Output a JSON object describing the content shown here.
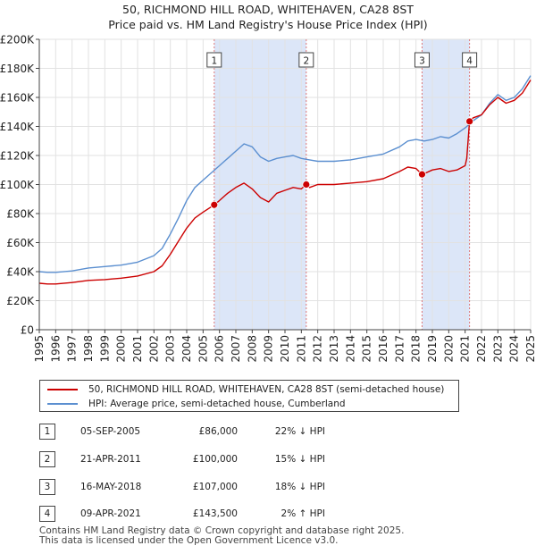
{
  "chart_data": {
    "type": "line",
    "title": "50, RICHMOND HILL ROAD, WHITEHAVEN, CA28 8ST",
    "subtitle": "Price paid vs. HM Land Registry's House Price Index (HPI)",
    "xlim": [
      1995,
      2025
    ],
    "ylim": [
      0,
      200000
    ],
    "x_ticks": [
      "1995",
      "1996",
      "1997",
      "1998",
      "1999",
      "2000",
      "2001",
      "2002",
      "2003",
      "2004",
      "2005",
      "2006",
      "2007",
      "2008",
      "2009",
      "2010",
      "2011",
      "2012",
      "2013",
      "2014",
      "2015",
      "2016",
      "2017",
      "2018",
      "2019",
      "2020",
      "2021",
      "2022",
      "2023",
      "2024",
      "2025"
    ],
    "y_ticks": [
      {
        "value": 0,
        "label": "£0"
      },
      {
        "value": 20000,
        "label": "£20K"
      },
      {
        "value": 40000,
        "label": "£40K"
      },
      {
        "value": 60000,
        "label": "£60K"
      },
      {
        "value": 80000,
        "label": "£80K"
      },
      {
        "value": 100000,
        "label": "£100K"
      },
      {
        "value": 120000,
        "label": "£120K"
      },
      {
        "value": 140000,
        "label": "£140K"
      },
      {
        "value": 160000,
        "label": "£160K"
      },
      {
        "value": 180000,
        "label": "£180K"
      },
      {
        "value": 200000,
        "label": "£200K"
      }
    ],
    "grid": true,
    "colors": {
      "property": "#cc0000",
      "hpi": "#5b8fd0",
      "band": "#dce6f8",
      "vline": "#dd7777"
    },
    "series": [
      {
        "name": "50, RICHMOND HILL ROAD, WHITEHAVEN, CA28 8ST (semi-detached house)",
        "x": [
          1995,
          1995.5,
          1996,
          1997,
          1998,
          1999,
          2000,
          2001,
          2002,
          2002.5,
          2003,
          2003.5,
          2004,
          2004.5,
          2005,
          2005.68,
          2006,
          2006.5,
          2007,
          2007.5,
          2008,
          2008.5,
          2009,
          2009.5,
          2010,
          2010.5,
          2011,
          2011.3,
          2011.5,
          2012,
          2013,
          2014,
          2015,
          2016,
          2017,
          2017.5,
          2018,
          2018.37,
          2018.6,
          2019,
          2019.5,
          2020,
          2020.5,
          2021,
          2021.1,
          2021.27,
          2021.5,
          2022,
          2022.5,
          2023,
          2023.5,
          2024,
          2024.5,
          2025
        ],
        "values": [
          32000,
          31500,
          31500,
          32500,
          34000,
          34500,
          35500,
          37000,
          40000,
          44000,
          52000,
          61000,
          70000,
          77000,
          81000,
          86000,
          89000,
          94000,
          98000,
          101000,
          97000,
          91000,
          88000,
          94000,
          96000,
          98000,
          97000,
          100000,
          98000,
          100000,
          100000,
          101000,
          102000,
          104000,
          109000,
          112000,
          111000,
          107000,
          108000,
          110000,
          111000,
          109000,
          110000,
          113000,
          118000,
          143500,
          146000,
          148000,
          155000,
          160000,
          156000,
          158000,
          163000,
          172000
        ]
      },
      {
        "name": "HPI: Average price, semi-detached house, Cumberland",
        "x": [
          1995,
          1995.5,
          1996,
          1997,
          1998,
          1999,
          2000,
          2001,
          2002,
          2002.5,
          2003,
          2003.5,
          2004,
          2004.5,
          2005,
          2005.5,
          2006,
          2006.5,
          2007,
          2007.5,
          2008,
          2008.5,
          2009,
          2009.5,
          2010,
          2010.5,
          2011,
          2011.5,
          2012,
          2013,
          2014,
          2015,
          2016,
          2017,
          2017.5,
          2018,
          2018.5,
          2019,
          2019.5,
          2020,
          2020.5,
          2021,
          2021.5,
          2022,
          2022.5,
          2023,
          2023.5,
          2024,
          2024.5,
          2025
        ],
        "values": [
          40000,
          39500,
          39500,
          40500,
          42500,
          43500,
          44500,
          46500,
          51000,
          56000,
          66000,
          77000,
          89000,
          98000,
          103000,
          108000,
          113000,
          118000,
          123000,
          128000,
          126000,
          119000,
          116000,
          118000,
          119000,
          120000,
          118000,
          117000,
          116000,
          116000,
          117000,
          119000,
          121000,
          126000,
          130000,
          131000,
          130000,
          131000,
          133000,
          132000,
          135000,
          139000,
          144000,
          148000,
          156000,
          162000,
          158000,
          160000,
          166000,
          175000
        ]
      }
    ],
    "transactions": [
      {
        "num": "1",
        "x": 2005.68,
        "value": 86000
      },
      {
        "num": "2",
        "x": 2011.3,
        "value": 100000
      },
      {
        "num": "3",
        "x": 2018.37,
        "value": 107000
      },
      {
        "num": "4",
        "x": 2021.27,
        "value": 143500
      }
    ],
    "bands": [
      [
        2005.68,
        2011.3
      ],
      [
        2018.37,
        2021.27
      ]
    ]
  },
  "legend": {
    "property_label": "50, RICHMOND HILL ROAD, WHITEHAVEN, CA28 8ST (semi-detached house)",
    "hpi_label": "HPI: Average price, semi-detached house, Cumberland"
  },
  "table": [
    {
      "num": "1",
      "date": "05-SEP-2005",
      "price": "£86,000",
      "hpi": "22% ↓ HPI"
    },
    {
      "num": "2",
      "date": "21-APR-2011",
      "price": "£100,000",
      "hpi": "15% ↓ HPI"
    },
    {
      "num": "3",
      "date": "16-MAY-2018",
      "price": "£107,000",
      "hpi": "18% ↓ HPI"
    },
    {
      "num": "4",
      "date": "09-APR-2021",
      "price": "£143,500",
      "hpi": "2% ↑ HPI"
    }
  ],
  "footer": {
    "line1": "Contains HM Land Registry data © Crown copyright and database right 2025.",
    "line2": "This data is licensed under the Open Government Licence v3.0."
  }
}
